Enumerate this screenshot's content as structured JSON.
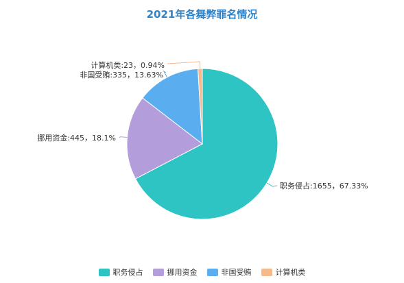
{
  "chart_data": {
    "type": "pie",
    "title": "2021年各舞弊罪名情况",
    "series": [
      {
        "name": "职务侵占",
        "value": 1655,
        "percent": "67.33%",
        "label": "职务侵占:1655，67.33%",
        "color": "#2ec4c4"
      },
      {
        "name": "挪用资金",
        "value": 445,
        "percent": "18.1%",
        "label": "挪用资金:445，18.1%",
        "color": "#b39ddb"
      },
      {
        "name": "非国受贿",
        "value": 335,
        "percent": "13.63%",
        "label": "非国受贿:335，13.63%",
        "color": "#5aaef0"
      },
      {
        "name": "计算机类",
        "value": 23,
        "percent": "0.94%",
        "label": "计算机类:23，0.94%",
        "color": "#f5b98c"
      }
    ],
    "legend_position": "bottom"
  }
}
